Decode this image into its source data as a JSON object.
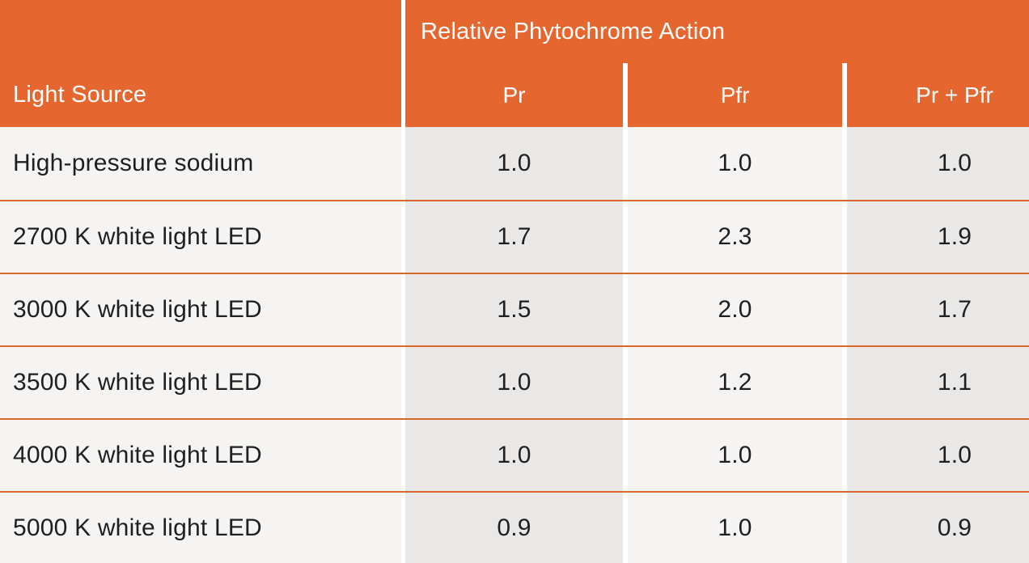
{
  "table": {
    "header": {
      "group_label": "Relative Phytochrome Action",
      "light_source_label": "Light Source",
      "columns": {
        "pr": "Pr",
        "pfr": "Pfr",
        "pr_pfr": "Pr + Pfr"
      }
    },
    "rows": [
      {
        "source": "High-pressure sodium",
        "pr": "1.0",
        "pfr": "1.0",
        "pr_pfr": "1.0"
      },
      {
        "source": "2700 K white light LED",
        "pr": "1.7",
        "pfr": "2.3",
        "pr_pfr": "1.9"
      },
      {
        "source": "3000 K white light LED",
        "pr": "1.5",
        "pfr": "2.0",
        "pr_pfr": "1.7"
      },
      {
        "source": "3500 K white light LED",
        "pr": "1.0",
        "pfr": "1.2",
        "pr_pfr": "1.1"
      },
      {
        "source": "4000 K white light LED",
        "pr": "1.0",
        "pfr": "1.0",
        "pr_pfr": "1.0"
      },
      {
        "source": "5000 K white light LED",
        "pr": "0.9",
        "pfr": "1.0",
        "pr_pfr": "0.9"
      }
    ],
    "colors": {
      "header_orange": "#e5662e",
      "row_separator_orange": "#d8672e",
      "light_cell_gray": "#f5f4f3",
      "dark_cell_gray": "#e9e8e7",
      "divider_white": "#ffffff",
      "header_text": "#ffffff",
      "body_text": "#1f1f1f"
    }
  },
  "chart_data": {
    "type": "table",
    "title": "Relative Phytochrome Action",
    "columns": [
      "Light Source",
      "Pr",
      "Pfr",
      "Pr + Pfr"
    ],
    "rows": [
      [
        "High-pressure sodium",
        1.0,
        1.0,
        1.0
      ],
      [
        "2700 K white light LED",
        1.7,
        2.3,
        1.9
      ],
      [
        "3000 K white light LED",
        1.5,
        2.0,
        1.7
      ],
      [
        "3500 K white light LED",
        1.0,
        1.2,
        1.1
      ],
      [
        "4000 K white light LED",
        1.0,
        1.0,
        1.0
      ],
      [
        "5000 K white light LED",
        0.9,
        1.0,
        0.9
      ]
    ],
    "layout_hints": {
      "group_header_spans": [
        "Pr",
        "Pfr",
        "Pr + Pfr"
      ],
      "column_shading": [
        "light",
        "dark",
        "light",
        "dark"
      ],
      "right_edge_cropped": true
    }
  }
}
